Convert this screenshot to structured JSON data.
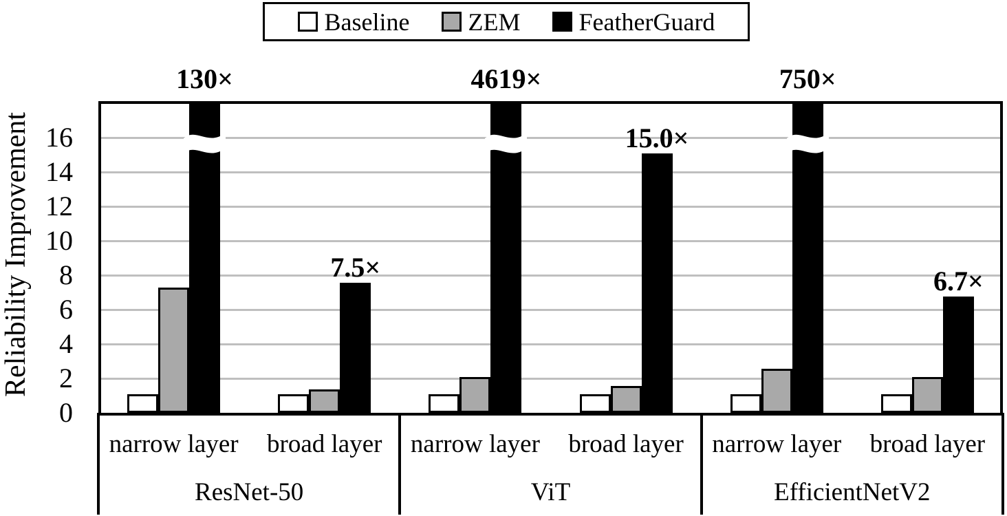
{
  "chart_data": {
    "type": "bar",
    "title": "",
    "ylabel": "Reliability Improvement",
    "xlabel": "",
    "ylim": [
      0,
      18
    ],
    "yticks": [
      0,
      2,
      4,
      6,
      8,
      10,
      12,
      14,
      16
    ],
    "grid": true,
    "legend_position": "top",
    "axis_break_above": 16,
    "series_names": [
      "Baseline",
      "ZEM",
      "FeatherGuard"
    ],
    "colors": {
      "Baseline": "#FFFFFF",
      "ZEM": "#A9A9A9",
      "FeatherGuard": "#000000",
      "gridline": "#BFBFBF",
      "axis": "#000000"
    },
    "models": [
      {
        "name": "ResNet-50",
        "layers": [
          {
            "name": "narrow layer",
            "values": {
              "Baseline": 1.0,
              "ZEM": 7.2,
              "FeatherGuard": 130
            },
            "featherguard_label": "130×",
            "overflow": true
          },
          {
            "name": "broad layer",
            "values": {
              "Baseline": 1.0,
              "ZEM": 1.3,
              "FeatherGuard": 7.5
            },
            "featherguard_label": "7.5×",
            "overflow": false
          }
        ]
      },
      {
        "name": "ViT",
        "layers": [
          {
            "name": "narrow layer",
            "values": {
              "Baseline": 1.0,
              "ZEM": 2.0,
              "FeatherGuard": 4619
            },
            "featherguard_label": "4619×",
            "overflow": true
          },
          {
            "name": "broad layer",
            "values": {
              "Baseline": 1.0,
              "ZEM": 1.5,
              "FeatherGuard": 15.0
            },
            "featherguard_label": "15.0×",
            "overflow": false
          }
        ]
      },
      {
        "name": "EfficientNetV2",
        "layers": [
          {
            "name": "narrow layer",
            "values": {
              "Baseline": 1.0,
              "ZEM": 2.5,
              "FeatherGuard": 750
            },
            "featherguard_label": "750×",
            "overflow": true
          },
          {
            "name": "broad layer",
            "values": {
              "Baseline": 1.0,
              "ZEM": 2.0,
              "FeatherGuard": 6.7
            },
            "featherguard_label": "6.7×",
            "overflow": false
          }
        ]
      }
    ],
    "legend": [
      {
        "label": "Baseline",
        "color": "#FFFFFF"
      },
      {
        "label": "ZEM",
        "color": "#A9A9A9"
      },
      {
        "label": "FeatherGuard",
        "color": "#000000"
      }
    ]
  }
}
